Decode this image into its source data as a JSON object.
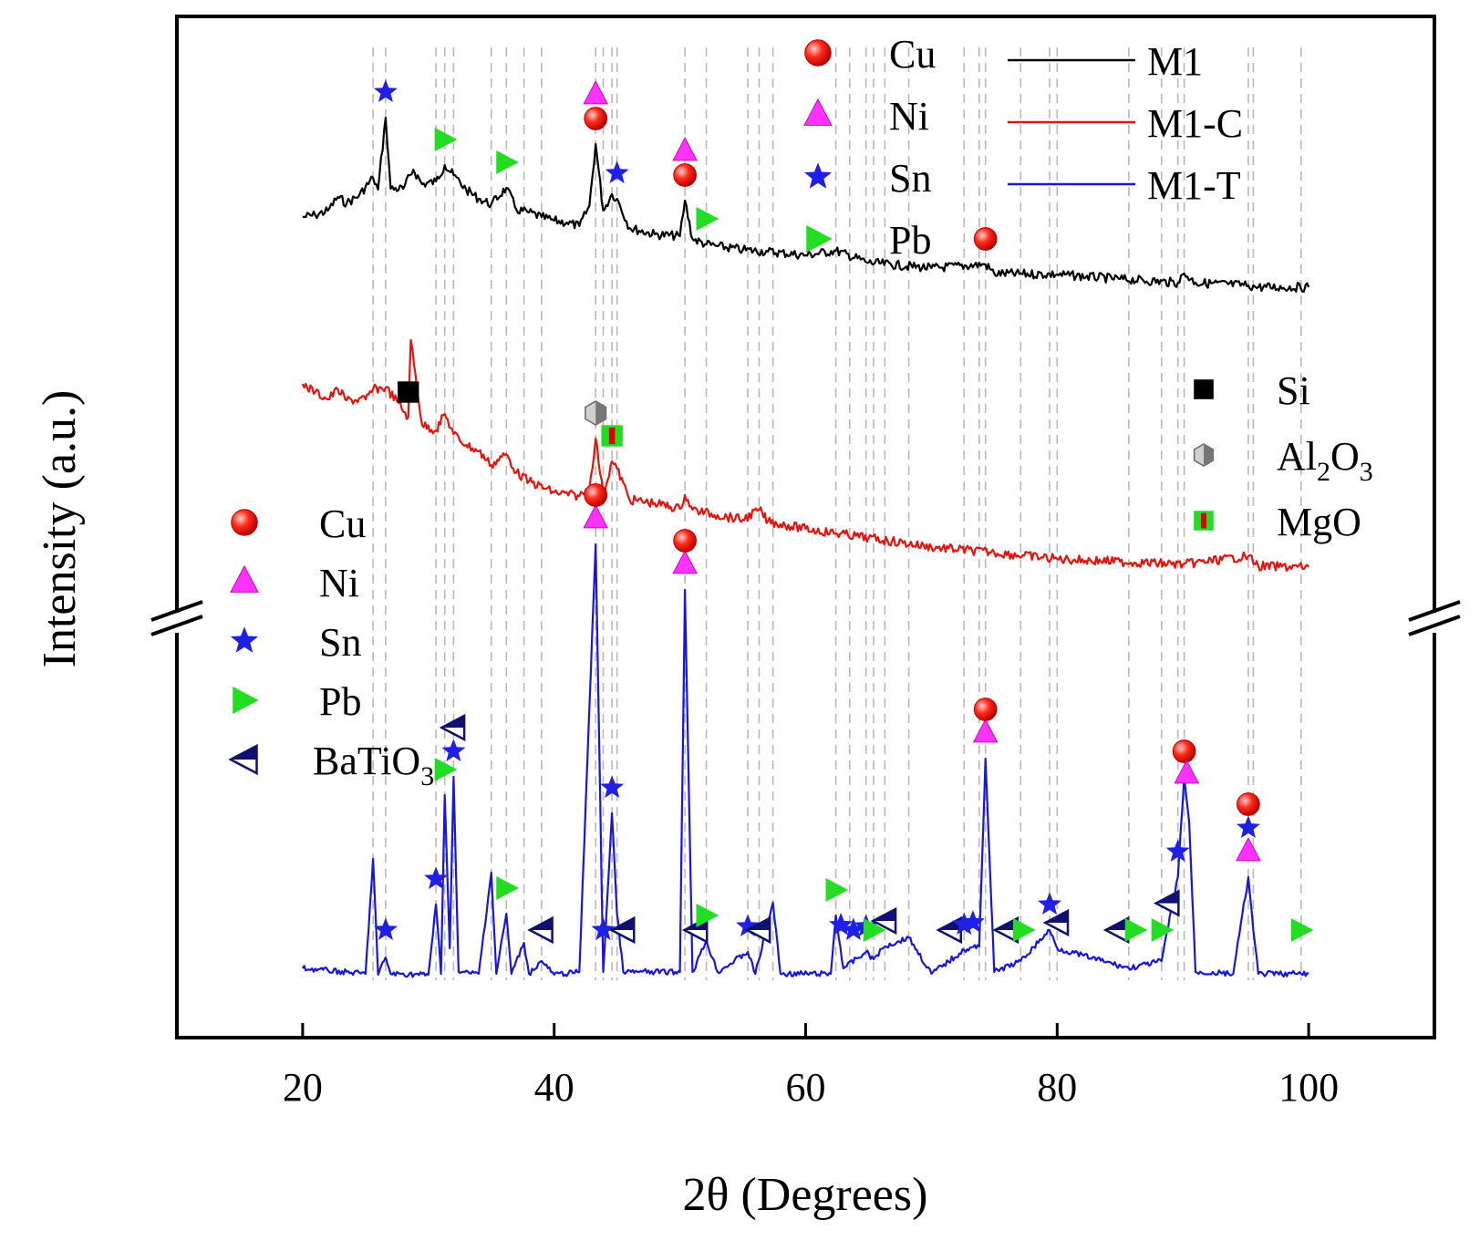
{
  "chart_data": {
    "type": "line",
    "xlabel": "2θ (Degrees)",
    "ylabel": "Intensity (a.u.)",
    "xlim": [
      10,
      110
    ],
    "xticks": [
      20,
      40,
      60,
      80,
      100
    ],
    "y_axis_break": true,
    "grid": false,
    "reference_lines_x": [
      25.6,
      26.6,
      30.6,
      31.3,
      32.0,
      35.0,
      36.2,
      37.6,
      39.0,
      43.3,
      43.9,
      44.6,
      45.0,
      50.4,
      52.1,
      55.4,
      56.3,
      57.4,
      62.4,
      63.5,
      64.8,
      65.4,
      66.3,
      68.2,
      72.6,
      73.8,
      74.3,
      77.1,
      79.4,
      80.0,
      85.7,
      88.3,
      89.6,
      90.1,
      95.2,
      95.6,
      99.4
    ],
    "series": [
      {
        "name": "M1",
        "color": "#000000",
        "x": [
          20,
          21,
          22,
          22.8,
          23.5,
          24.5,
          25.6,
          26,
          26.6,
          27,
          28,
          28.8,
          29.5,
          30.6,
          31.3,
          32,
          33,
          34,
          35,
          36.2,
          37,
          38,
          39,
          40,
          41,
          42,
          42.8,
          43.3,
          43.9,
          44.6,
          45,
          46,
          48,
          50,
          50.4,
          51,
          52.1,
          53,
          55,
          57,
          60,
          62.4,
          65,
          70,
          74.3,
          75,
          80,
          85,
          89.6,
          90.1,
          91,
          95.2,
          96,
          100
        ],
        "y": [
          200,
          198,
          193,
          178,
          185,
          176,
          157,
          170,
          91,
          169,
          169,
          148,
          164,
          161,
          143,
          154,
          170,
          180,
          186,
          168,
          192,
          195,
          200,
          204,
          206,
          210,
          188,
          120,
          193,
          175,
          180,
          212,
          219,
          221,
          182,
          224,
          230,
          232,
          236,
          238,
          242,
          237,
          250,
          256,
          252,
          262,
          263,
          268,
          272,
          262,
          272,
          275,
          277,
          277
        ]
      },
      {
        "name": "M1-C",
        "color": "#e8120c",
        "x": [
          20,
          21,
          22,
          22.8,
          23.5,
          25,
          25.6,
          26.6,
          27.5,
          28.4,
          28.6,
          29.5,
          30.6,
          31.3,
          32,
          33,
          34,
          35,
          36.2,
          37,
          38,
          40,
          42,
          42.8,
          43.3,
          43.9,
          44.6,
          45,
          46,
          48,
          50,
          50.4,
          51,
          53,
          55,
          56.3,
          57,
          60,
          65,
          70,
          75,
          80,
          85,
          90,
          95.2,
          96,
          100
        ],
        "y": [
          283,
          292,
          300,
          289,
          301,
          300,
          289,
          287,
          302,
          320,
          235,
          328,
          334,
          316,
          338,
          350,
          357,
          372,
          360,
          380,
          390,
          402,
          406,
          398,
          343,
          405,
          368,
          376,
          410,
          414,
          420,
          405,
          421,
          427,
          432,
          421,
          434,
          442,
          452,
          462,
          468,
          475,
          478,
          481,
          472,
          483,
          484
        ]
      },
      {
        "name": "M1-T",
        "color": "#1616e0",
        "x": [
          20,
          25,
          25.6,
          26,
          26.6,
          27,
          30,
          30.6,
          31,
          31.3,
          31.7,
          32,
          32.4,
          34,
          35,
          35.4,
          36.2,
          36.6,
          37.6,
          38,
          39,
          40,
          42,
          43.3,
          43.9,
          44.6,
          45,
          45.5,
          48,
          50,
          50.4,
          51,
          52.1,
          53,
          55.4,
          56,
          57.4,
          58,
          62,
          62.4,
          63,
          64.8,
          65.4,
          66.3,
          68.2,
          70,
          72.6,
          73.8,
          74.3,
          75,
          77.1,
          79.4,
          80,
          85.7,
          88.3,
          89.6,
          90.1,
          90.5,
          91,
          94,
          95.2,
          95.6,
          96,
          99.4,
          100
        ],
        "y": [
          10,
          4,
          130,
          3,
          22,
          4,
          3,
          80,
          4,
          200,
          32,
          220,
          6,
          4,
          115,
          4,
          70,
          4,
          38,
          4,
          18,
          3,
          6,
          475,
          6,
          180,
          70,
          6,
          6,
          6,
          425,
          6,
          40,
          6,
          28,
          4,
          82,
          4,
          4,
          68,
          10,
          28,
          20,
          34,
          44,
          4,
          30,
          34,
          240,
          6,
          18,
          52,
          32,
          10,
          18,
          110,
          220,
          170,
          6,
          4,
          110,
          52,
          4,
          4,
          4
        ]
      }
    ],
    "legend_top": {
      "placement": "top-center",
      "phases": [
        {
          "label": "Cu",
          "marker": "red-sphere"
        },
        {
          "label": "Ni",
          "marker": "magenta-triangle-up"
        },
        {
          "label": "Sn",
          "marker": "blue-star"
        },
        {
          "label": "Pb",
          "marker": "green-triangle-right"
        }
      ],
      "lines": [
        {
          "label": "M1",
          "color": "#000000"
        },
        {
          "label": "M1-C",
          "color": "#e8120c"
        },
        {
          "label": "M1-T",
          "color": "#1616e0"
        }
      ]
    },
    "legend_right": {
      "placement": "middle-right",
      "phases": [
        {
          "label": "Si",
          "marker": "black-square"
        },
        {
          "label_main": "Al",
          "sub1": "2",
          "label_mid": "O",
          "sub2": "3",
          "marker": "grey-hexagon"
        },
        {
          "label": "MgO",
          "marker": "green-red-square"
        }
      ]
    },
    "legend_left": {
      "placement": "middle-left",
      "phases": [
        {
          "label": "Cu",
          "marker": "red-sphere"
        },
        {
          "label": "Ni",
          "marker": "magenta-triangle-up"
        },
        {
          "label": "Sn",
          "marker": "blue-star"
        },
        {
          "label": "Pb",
          "marker": "green-triangle-right"
        },
        {
          "label_main": "BaTiO",
          "sub": "3",
          "marker": "navy-half-triangle-left"
        }
      ]
    },
    "phase_markers": {
      "M1": [
        {
          "x": 26.6,
          "phase": "Sn"
        },
        {
          "x": 31.3,
          "phase": "Pb"
        },
        {
          "x": 36.2,
          "phase": "Pb"
        },
        {
          "x": 43.3,
          "phase": "Cu"
        },
        {
          "x": 43.3,
          "phase": "Ni"
        },
        {
          "x": 45.0,
          "phase": "Sn"
        },
        {
          "x": 50.4,
          "phase": "Cu"
        },
        {
          "x": 50.4,
          "phase": "Ni"
        },
        {
          "x": 52.1,
          "phase": "Pb"
        },
        {
          "x": 74.3,
          "phase": "Cu"
        }
      ],
      "M1-C": [
        {
          "x": 28.4,
          "phase": "Si"
        },
        {
          "x": 43.3,
          "phase": "Al2O3"
        },
        {
          "x": 44.6,
          "phase": "MgO"
        }
      ],
      "M1-T": [
        {
          "x": 26.6,
          "phase": "Sn"
        },
        {
          "x": 30.6,
          "phase": "Sn"
        },
        {
          "x": 31.3,
          "phase": "Pb"
        },
        {
          "x": 32.0,
          "phase": "Sn"
        },
        {
          "x": 32.0,
          "phase": "BaTiO3"
        },
        {
          "x": 36.2,
          "phase": "Pb"
        },
        {
          "x": 39.0,
          "phase": "BaTiO3"
        },
        {
          "x": 43.3,
          "phase": "Ni"
        },
        {
          "x": 43.3,
          "phase": "Cu"
        },
        {
          "x": 43.9,
          "phase": "Sn"
        },
        {
          "x": 44.6,
          "phase": "Sn"
        },
        {
          "x": 45.5,
          "phase": "BaTiO3"
        },
        {
          "x": 50.4,
          "phase": "Ni"
        },
        {
          "x": 50.4,
          "phase": "Cu"
        },
        {
          "x": 51.3,
          "phase": "BaTiO3"
        },
        {
          "x": 52.1,
          "phase": "Pb"
        },
        {
          "x": 55.4,
          "phase": "Sn"
        },
        {
          "x": 56.3,
          "phase": "BaTiO3"
        },
        {
          "x": 62.4,
          "phase": "Pb"
        },
        {
          "x": 62.8,
          "phase": "Sn"
        },
        {
          "x": 63.8,
          "phase": "Sn"
        },
        {
          "x": 64.8,
          "phase": "Sn"
        },
        {
          "x": 65.4,
          "phase": "Pb"
        },
        {
          "x": 66.3,
          "phase": "BaTiO3"
        },
        {
          "x": 71.5,
          "phase": "BaTiO3"
        },
        {
          "x": 72.6,
          "phase": "Sn"
        },
        {
          "x": 73.3,
          "phase": "Sn"
        },
        {
          "x": 74.3,
          "phase": "Ni"
        },
        {
          "x": 74.3,
          "phase": "Cu"
        },
        {
          "x": 76.0,
          "phase": "BaTiO3"
        },
        {
          "x": 77.3,
          "phase": "Pb"
        },
        {
          "x": 79.4,
          "phase": "Sn"
        },
        {
          "x": 80.0,
          "phase": "BaTiO3"
        },
        {
          "x": 84.8,
          "phase": "BaTiO3"
        },
        {
          "x": 86.2,
          "phase": "Pb"
        },
        {
          "x": 88.3,
          "phase": "Pb"
        },
        {
          "x": 88.8,
          "phase": "BaTiO3"
        },
        {
          "x": 89.6,
          "phase": "Sn"
        },
        {
          "x": 90.1,
          "phase": "Cu"
        },
        {
          "x": 90.3,
          "phase": "Ni"
        },
        {
          "x": 95.2,
          "phase": "Ni"
        },
        {
          "x": 95.2,
          "phase": "Sn"
        },
        {
          "x": 95.2,
          "phase": "Cu"
        },
        {
          "x": 99.4,
          "phase": "Pb"
        }
      ]
    }
  }
}
